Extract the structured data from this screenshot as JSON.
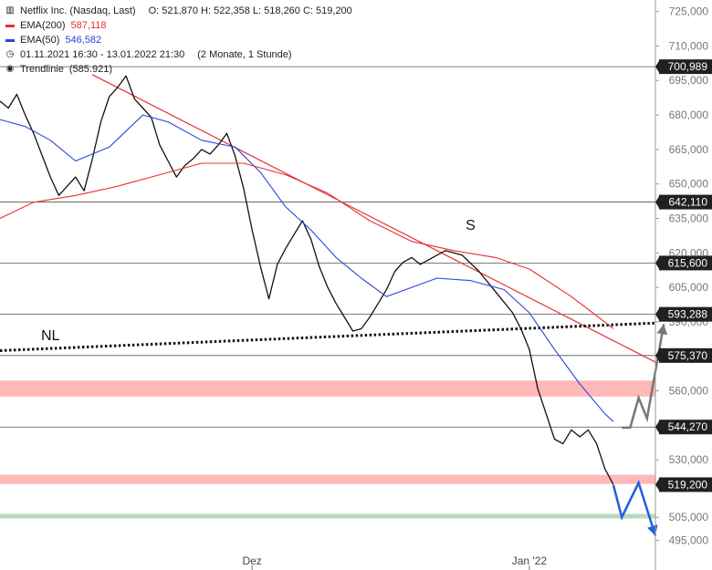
{
  "legend": {
    "instrument": "Netflix Inc. (Nasdaq, Last)",
    "ohlc": "O: 521,870  H: 522,358  L: 518,260  C: 519,200",
    "ema200_label": "EMA(200)",
    "ema200_value": "587,118",
    "ema50_label": "EMA(50)",
    "ema50_value": "546,582",
    "period": "01.11.2021 16:30 - 13.01.2022 21:30",
    "period_note": "(2 Monate, 1 Stunde)",
    "trend_label": "Trendlinie",
    "trend_value": "(585.921)"
  },
  "colors": {
    "ema200": "#e53030",
    "ema50": "#2a45d8",
    "price": "#111111",
    "zone": "#ffb8b8",
    "support_zone": "#b9d9bf",
    "forecast_up": "#777777",
    "forecast_down": "#1f5fe0"
  },
  "chart_data": {
    "type": "line",
    "title": "",
    "xlabel": "",
    "ylabel": "",
    "ylim": [
      492,
      730
    ],
    "y_ticks": [
      "725,000",
      "710,000",
      "695,000",
      "680,000",
      "665,000",
      "650,000",
      "635,000",
      "620,000",
      "605,000",
      "590,000",
      "575,000",
      "560,000",
      "545,000",
      "530,000",
      "519,200",
      "505,000",
      "495,000"
    ],
    "x_ticks": [
      {
        "date": "2021-12-01",
        "label": "Dez"
      },
      {
        "date": "2022-01-03",
        "label": "Jan '22"
      }
    ],
    "x_range": [
      "2021-11-01",
      "2022-01-18"
    ],
    "series": [
      {
        "name": "Netflix Inc. (Nasdaq, Last)",
        "color": "#111111",
        "points": [
          [
            "2021-11-01",
            686
          ],
          [
            "2021-11-02",
            683
          ],
          [
            "2021-11-03",
            689
          ],
          [
            "2021-11-04",
            680
          ],
          [
            "2021-11-05",
            672
          ],
          [
            "2021-11-07",
            653
          ],
          [
            "2021-11-08",
            645
          ],
          [
            "2021-11-09",
            649
          ],
          [
            "2021-11-10",
            653
          ],
          [
            "2021-11-11",
            647
          ],
          [
            "2021-11-12",
            661
          ],
          [
            "2021-11-13",
            677
          ],
          [
            "2021-11-14",
            688
          ],
          [
            "2021-11-15",
            692
          ],
          [
            "2021-11-16",
            697
          ],
          [
            "2021-11-17",
            687
          ],
          [
            "2021-11-18",
            683
          ],
          [
            "2021-11-19",
            679
          ],
          [
            "2021-11-20",
            667
          ],
          [
            "2021-11-21",
            660
          ],
          [
            "2021-11-22",
            653
          ],
          [
            "2021-11-23",
            658
          ],
          [
            "2021-11-24",
            661
          ],
          [
            "2021-11-25",
            665
          ],
          [
            "2021-11-26",
            663
          ],
          [
            "2021-11-27",
            667
          ],
          [
            "2021-11-28",
            672
          ],
          [
            "2021-11-29",
            662
          ],
          [
            "2021-11-30",
            648
          ],
          [
            "2021-12-01",
            630
          ],
          [
            "2021-12-02",
            614
          ],
          [
            "2021-12-03",
            600
          ],
          [
            "2021-12-04",
            615
          ],
          [
            "2021-12-05",
            622
          ],
          [
            "2021-12-06",
            628
          ],
          [
            "2021-12-07",
            634
          ],
          [
            "2021-12-08",
            626
          ],
          [
            "2021-12-09",
            614
          ],
          [
            "2021-12-10",
            605
          ],
          [
            "2021-12-11",
            598
          ],
          [
            "2021-12-12",
            592
          ],
          [
            "2021-12-13",
            586
          ],
          [
            "2021-12-14",
            587
          ],
          [
            "2021-12-15",
            592
          ],
          [
            "2021-12-16",
            598
          ],
          [
            "2021-12-17",
            604
          ],
          [
            "2021-12-18",
            612
          ],
          [
            "2021-12-19",
            616
          ],
          [
            "2021-12-20",
            618
          ],
          [
            "2021-12-21",
            615
          ],
          [
            "2021-12-22",
            617
          ],
          [
            "2021-12-23",
            619
          ],
          [
            "2021-12-24",
            621
          ],
          [
            "2021-12-26",
            619
          ],
          [
            "2021-12-28",
            612
          ],
          [
            "2021-12-30",
            603
          ],
          [
            "2022-01-01",
            594
          ],
          [
            "2022-01-02",
            587
          ],
          [
            "2022-01-03",
            578
          ],
          [
            "2022-01-04",
            561
          ],
          [
            "2022-01-05",
            550
          ],
          [
            "2022-01-06",
            539
          ],
          [
            "2022-01-07",
            537
          ],
          [
            "2022-01-08",
            543
          ],
          [
            "2022-01-09",
            540
          ],
          [
            "2022-01-10",
            543
          ],
          [
            "2022-01-11",
            537
          ],
          [
            "2022-01-12",
            526
          ],
          [
            "2022-01-13",
            519.2
          ]
        ]
      },
      {
        "name": "EMA(50)",
        "color": "#2a45d8",
        "points": [
          [
            "2021-11-01",
            678
          ],
          [
            "2021-11-04",
            675
          ],
          [
            "2021-11-07",
            669
          ],
          [
            "2021-11-10",
            660
          ],
          [
            "2021-11-14",
            666
          ],
          [
            "2021-11-18",
            680
          ],
          [
            "2021-11-21",
            677
          ],
          [
            "2021-11-25",
            669
          ],
          [
            "2021-11-29",
            666
          ],
          [
            "2021-12-02",
            655
          ],
          [
            "2021-12-05",
            640
          ],
          [
            "2021-12-08",
            630
          ],
          [
            "2021-12-11",
            618
          ],
          [
            "2021-12-14",
            609
          ],
          [
            "2021-12-17",
            601
          ],
          [
            "2021-12-20",
            605
          ],
          [
            "2021-12-23",
            609
          ],
          [
            "2021-12-27",
            608
          ],
          [
            "2021-12-31",
            604
          ],
          [
            "2022-01-03",
            594
          ],
          [
            "2022-01-06",
            578
          ],
          [
            "2022-01-09",
            563
          ],
          [
            "2022-01-12",
            550
          ],
          [
            "2022-01-13",
            546.6
          ]
        ]
      },
      {
        "name": "EMA(200)",
        "color": "#e53030",
        "points": [
          [
            "2021-11-01",
            635
          ],
          [
            "2021-11-05",
            642
          ],
          [
            "2021-11-10",
            645
          ],
          [
            "2021-11-15",
            649
          ],
          [
            "2021-11-20",
            654
          ],
          [
            "2021-11-25",
            659
          ],
          [
            "2021-11-30",
            659
          ],
          [
            "2021-12-05",
            654
          ],
          [
            "2021-12-10",
            646
          ],
          [
            "2021-12-15",
            634
          ],
          [
            "2021-12-20",
            625
          ],
          [
            "2021-12-25",
            621
          ],
          [
            "2021-12-30",
            618
          ],
          [
            "2022-01-03",
            613
          ],
          [
            "2022-01-08",
            601
          ],
          [
            "2022-01-13",
            587.1
          ]
        ]
      }
    ],
    "horizontal_levels": [
      {
        "value": 700.989,
        "label": "700,989"
      },
      {
        "value": 642.11,
        "label": "642,110"
      },
      {
        "value": 615.6,
        "label": "615,600"
      },
      {
        "value": 593.288,
        "label": "593,288"
      },
      {
        "value": 575.37,
        "label": "575,370"
      },
      {
        "value": 544.27,
        "label": "544,270"
      },
      {
        "value": 519.2,
        "label": "519,200"
      }
    ],
    "zones": [
      {
        "from": 557.5,
        "to": 564.5,
        "color": "#ffb8b8"
      },
      {
        "from": 519.5,
        "to": 523.5,
        "color": "#ffb8b8"
      },
      {
        "from": 504.5,
        "to": 506.5,
        "color": "#b9d9bf"
      }
    ],
    "trendlines": [
      {
        "name": "downtrend",
        "color": "#e53030",
        "style": "solid",
        "from": [
          "2021-11-12",
          697.5
        ],
        "to": [
          "2022-01-18",
          572.5
        ]
      },
      {
        "name": "neckline",
        "color": "#111111",
        "style": "dotted",
        "from": [
          "2021-11-01",
          577.5
        ],
        "to": [
          "2022-01-18",
          589.5
        ]
      }
    ],
    "forecasts": [
      {
        "name": "up-scenario",
        "color": "#777777",
        "points": [
          [
            "2022-01-14",
            544
          ],
          [
            "2022-01-15",
            544
          ],
          [
            "2022-01-16",
            557
          ],
          [
            "2022-01-17",
            548
          ],
          [
            "2022-01-19",
            589
          ]
        ]
      },
      {
        "name": "down-scenario",
        "color": "#1f5fe0",
        "points": [
          [
            "2022-01-13",
            519
          ],
          [
            "2022-01-14",
            505
          ],
          [
            "2022-01-16",
            520
          ],
          [
            "2022-01-18",
            497
          ]
        ]
      }
    ],
    "annotations": [
      {
        "text": "S",
        "date": "2021-12-27",
        "value": 630
      },
      {
        "text": "NL",
        "date": "2021-11-07",
        "value": 582
      }
    ]
  }
}
